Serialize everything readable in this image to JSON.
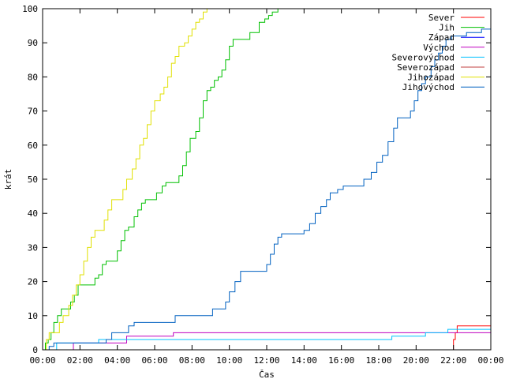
{
  "chart_data": {
    "type": "line",
    "xlabel": "Čas",
    "ylabel": "krát",
    "xlim": [
      0,
      24
    ],
    "ylim": [
      0,
      100
    ],
    "x_ticks": [
      {
        "v": 0,
        "label": "00:00"
      },
      {
        "v": 2,
        "label": "02:00"
      },
      {
        "v": 4,
        "label": "04:00"
      },
      {
        "v": 6,
        "label": "06:00"
      },
      {
        "v": 8,
        "label": "08:00"
      },
      {
        "v": 10,
        "label": "10:00"
      },
      {
        "v": 12,
        "label": "12:00"
      },
      {
        "v": 14,
        "label": "14:00"
      },
      {
        "v": 16,
        "label": "16:00"
      },
      {
        "v": 18,
        "label": "18:00"
      },
      {
        "v": 20,
        "label": "20:00"
      },
      {
        "v": 22,
        "label": "22:00"
      },
      {
        "v": 24,
        "label": "00:00"
      }
    ],
    "y_ticks": [
      {
        "v": 0,
        "label": "0"
      },
      {
        "v": 10,
        "label": "10"
      },
      {
        "v": 20,
        "label": "20"
      },
      {
        "v": 30,
        "label": "30"
      },
      {
        "v": 40,
        "label": "40"
      },
      {
        "v": 50,
        "label": "50"
      },
      {
        "v": 60,
        "label": "60"
      },
      {
        "v": 70,
        "label": "70"
      },
      {
        "v": 80,
        "label": "80"
      },
      {
        "v": 90,
        "label": "90"
      },
      {
        "v": 100,
        "label": "100"
      }
    ],
    "grid": false,
    "legend_position": "top-right",
    "series": [
      {
        "name": "Sever",
        "color": "#ff0000",
        "points": [
          [
            21.9,
            0
          ],
          [
            22.0,
            3
          ],
          [
            22.1,
            5
          ],
          [
            22.2,
            7
          ],
          [
            24,
            7
          ]
        ]
      },
      {
        "name": "Jih",
        "color": "#00c000",
        "points": [
          [
            0.05,
            0
          ],
          [
            0.15,
            2
          ],
          [
            0.3,
            3
          ],
          [
            0.45,
            5
          ],
          [
            0.6,
            8
          ],
          [
            0.8,
            10
          ],
          [
            1.0,
            12
          ],
          [
            1.3,
            12
          ],
          [
            1.5,
            14
          ],
          [
            1.7,
            16
          ],
          [
            1.9,
            19
          ],
          [
            2.2,
            19
          ],
          [
            2.6,
            19
          ],
          [
            2.8,
            21
          ],
          [
            3.0,
            22
          ],
          [
            3.2,
            25
          ],
          [
            3.4,
            26
          ],
          [
            3.8,
            26
          ],
          [
            4.0,
            29
          ],
          [
            4.2,
            32
          ],
          [
            4.4,
            35
          ],
          [
            4.6,
            36
          ],
          [
            4.9,
            39
          ],
          [
            5.1,
            41
          ],
          [
            5.3,
            43
          ],
          [
            5.5,
            44
          ],
          [
            5.8,
            44
          ],
          [
            6.1,
            46
          ],
          [
            6.4,
            48
          ],
          [
            6.6,
            49
          ],
          [
            7.1,
            49
          ],
          [
            7.3,
            51
          ],
          [
            7.5,
            54
          ],
          [
            7.7,
            58
          ],
          [
            7.9,
            62
          ],
          [
            8.2,
            64
          ],
          [
            8.4,
            68
          ],
          [
            8.6,
            73
          ],
          [
            8.8,
            76
          ],
          [
            9.0,
            77
          ],
          [
            9.2,
            79
          ],
          [
            9.4,
            80
          ],
          [
            9.6,
            82
          ],
          [
            9.8,
            85
          ],
          [
            10.0,
            89
          ],
          [
            10.2,
            91
          ],
          [
            10.8,
            91
          ],
          [
            11.1,
            93
          ],
          [
            11.4,
            93
          ],
          [
            11.6,
            96
          ],
          [
            11.9,
            97
          ],
          [
            12.1,
            98
          ],
          [
            12.3,
            99
          ],
          [
            12.6,
            100
          ],
          [
            24,
            100
          ]
        ]
      },
      {
        "name": "Západ",
        "color": "#0000ff",
        "points": [
          [
            0,
            0
          ],
          [
            24,
            0
          ]
        ]
      },
      {
        "name": "Východ",
        "color": "#c000c0",
        "points": [
          [
            1.6,
            0
          ],
          [
            1.65,
            2
          ],
          [
            3.0,
            2
          ],
          [
            3.05,
            2
          ],
          [
            4.4,
            2
          ],
          [
            4.5,
            4
          ],
          [
            6.9,
            4
          ],
          [
            7.0,
            5
          ],
          [
            24,
            5
          ]
        ]
      },
      {
        "name": "Severovýchod",
        "color": "#00c0ff",
        "points": [
          [
            0.7,
            0
          ],
          [
            0.75,
            2
          ],
          [
            2.9,
            2
          ],
          [
            3.0,
            3
          ],
          [
            18.5,
            3
          ],
          [
            18.7,
            4
          ],
          [
            20.3,
            4
          ],
          [
            20.5,
            5
          ],
          [
            21.6,
            5
          ],
          [
            21.7,
            6
          ],
          [
            24,
            6
          ]
        ]
      },
      {
        "name": "Severozápad",
        "color": "#c04040",
        "points": [
          [
            0,
            0
          ],
          [
            24,
            0
          ]
        ]
      },
      {
        "name": "Jihozápad",
        "color": "#e0e000",
        "points": [
          [
            0.05,
            0
          ],
          [
            0.2,
            3
          ],
          [
            0.35,
            5
          ],
          [
            0.7,
            5
          ],
          [
            0.9,
            8
          ],
          [
            1.1,
            10
          ],
          [
            1.4,
            13
          ],
          [
            1.6,
            16
          ],
          [
            1.8,
            19
          ],
          [
            2.0,
            22
          ],
          [
            2.2,
            26
          ],
          [
            2.4,
            30
          ],
          [
            2.6,
            33
          ],
          [
            2.8,
            35
          ],
          [
            3.1,
            35
          ],
          [
            3.3,
            38
          ],
          [
            3.5,
            41
          ],
          [
            3.7,
            44
          ],
          [
            4.1,
            44
          ],
          [
            4.3,
            47
          ],
          [
            4.5,
            50
          ],
          [
            4.8,
            53
          ],
          [
            5.0,
            56
          ],
          [
            5.2,
            60
          ],
          [
            5.4,
            62
          ],
          [
            5.6,
            66
          ],
          [
            5.8,
            70
          ],
          [
            6.0,
            73
          ],
          [
            6.3,
            75
          ],
          [
            6.5,
            77
          ],
          [
            6.7,
            80
          ],
          [
            6.9,
            84
          ],
          [
            7.1,
            86
          ],
          [
            7.3,
            89
          ],
          [
            7.6,
            90
          ],
          [
            7.8,
            92
          ],
          [
            8.0,
            94
          ],
          [
            8.2,
            96
          ],
          [
            8.4,
            97
          ],
          [
            8.6,
            99
          ],
          [
            8.8,
            100
          ],
          [
            24,
            100
          ]
        ]
      },
      {
        "name": "Jihovýchod",
        "color": "#0060c0",
        "points": [
          [
            0.3,
            0
          ],
          [
            0.35,
            1
          ],
          [
            0.6,
            2
          ],
          [
            2.9,
            2
          ],
          [
            3.0,
            2
          ],
          [
            3.4,
            3
          ],
          [
            3.7,
            5
          ],
          [
            4.3,
            5
          ],
          [
            4.6,
            7
          ],
          [
            4.9,
            8
          ],
          [
            7.0,
            8
          ],
          [
            7.1,
            10
          ],
          [
            9.0,
            10
          ],
          [
            9.1,
            12
          ],
          [
            9.6,
            12
          ],
          [
            9.8,
            14
          ],
          [
            10.0,
            17
          ],
          [
            10.3,
            20
          ],
          [
            10.6,
            23
          ],
          [
            11.8,
            23
          ],
          [
            12.0,
            25
          ],
          [
            12.2,
            28
          ],
          [
            12.4,
            31
          ],
          [
            12.6,
            33
          ],
          [
            12.8,
            34
          ],
          [
            13.8,
            34
          ],
          [
            14.0,
            35
          ],
          [
            14.3,
            37
          ],
          [
            14.6,
            40
          ],
          [
            14.9,
            42
          ],
          [
            15.2,
            44
          ],
          [
            15.4,
            46
          ],
          [
            15.8,
            47
          ],
          [
            16.1,
            48
          ],
          [
            17.0,
            48
          ],
          [
            17.2,
            50
          ],
          [
            17.6,
            52
          ],
          [
            17.9,
            55
          ],
          [
            18.2,
            57
          ],
          [
            18.5,
            61
          ],
          [
            18.8,
            65
          ],
          [
            19.0,
            68
          ],
          [
            19.5,
            68
          ],
          [
            19.7,
            70
          ],
          [
            19.9,
            73
          ],
          [
            20.1,
            76
          ],
          [
            20.3,
            78
          ],
          [
            20.5,
            80
          ],
          [
            20.8,
            83
          ],
          [
            21.0,
            85
          ],
          [
            21.2,
            87
          ],
          [
            21.4,
            89
          ],
          [
            21.6,
            91
          ],
          [
            21.9,
            92
          ],
          [
            22.4,
            92
          ],
          [
            22.7,
            93
          ],
          [
            23.2,
            93
          ],
          [
            23.5,
            94
          ],
          [
            24,
            94
          ]
        ]
      }
    ]
  }
}
